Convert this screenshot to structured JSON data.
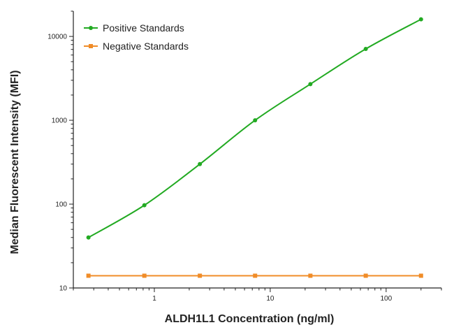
{
  "chart_data": {
    "type": "line",
    "title": "",
    "xlabel": "ALDH1L1 Concentration (ng/ml)",
    "ylabel": "Median Fluorescent Intensity (MFI)",
    "x_scale": "log",
    "y_scale": "log",
    "xlim": [
      0.2,
      300
    ],
    "ylim": [
      10,
      20000
    ],
    "x_ticks": [
      1,
      10,
      100
    ],
    "x_tick_labels": [
      "1",
      "10",
      "100"
    ],
    "y_ticks": [
      10,
      100,
      1000,
      10000
    ],
    "y_tick_labels": [
      "10",
      "100",
      "1000",
      "10000"
    ],
    "grid": false,
    "legend_position": "top-left",
    "series": [
      {
        "name": "Positive Standards",
        "color": "#22aa22",
        "marker": "circle",
        "x": [
          0.27,
          0.82,
          2.47,
          7.4,
          22.2,
          66.7,
          200
        ],
        "y": [
          40,
          97,
          300,
          1000,
          2700,
          7100,
          16000
        ]
      },
      {
        "name": "Negative Standards",
        "color": "#f08c28",
        "marker": "square",
        "x": [
          0.27,
          0.82,
          2.47,
          7.4,
          22.2,
          66.7,
          200
        ],
        "y": [
          14,
          14,
          14,
          14,
          14,
          14,
          14
        ]
      }
    ]
  }
}
